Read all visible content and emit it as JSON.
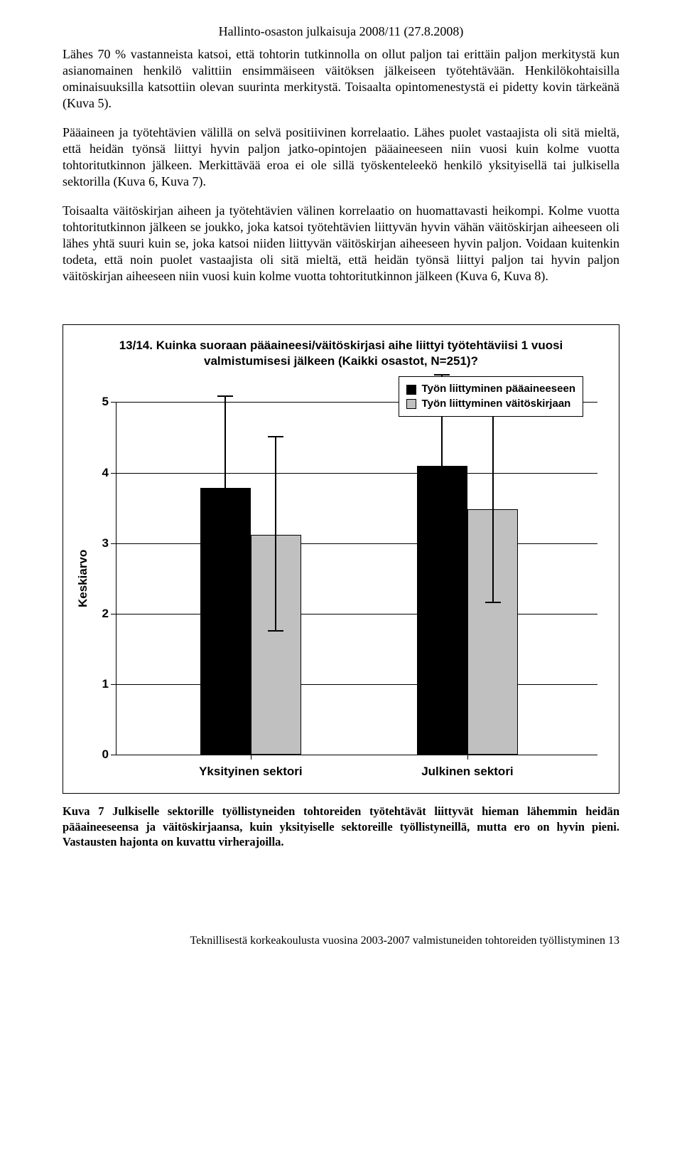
{
  "header": "Hallinto-osaston julkaisuja 2008/11 (27.8.2008)",
  "paragraphs": {
    "p1": "Lähes 70 % vastanneista katsoi, että tohtorin tutkinnolla on ollut paljon tai erittäin paljon merkitystä kun asianomainen henkilö valittiin ensimmäiseen väitöksen jälkeiseen työtehtävään. Henkilökohtaisilla ominaisuuksilla katsottiin olevan suurinta merkitystä. Toisaalta opintomenestystä ei pidetty kovin tärkeänä (Kuva 5).",
    "p2": "Pääaineen ja työtehtävien välillä on selvä positiivinen korrelaatio. Lähes puolet vastaajista oli sitä mieltä, että heidän työnsä liittyi hyvin paljon jatko-opintojen pääaineeseen niin vuosi kuin kolme vuotta tohtoritutkinnon jälkeen. Merkittävää eroa ei ole sillä työskenteleekö henkilö yksityisellä tai julkisella sektorilla (Kuva 6, Kuva 7).",
    "p3": "Toisaalta väitöskirjan aiheen ja työtehtävien välinen korrelaatio on huomattavasti heikompi. Kolme vuotta tohtoritutkinnon jälkeen se joukko, joka katsoi työtehtävien liittyvän hyvin vähän väitöskirjan aiheeseen oli lähes yhtä suuri kuin se, joka katsoi niiden liittyvän väitöskirjan aiheeseen hyvin paljon. Voidaan kuitenkin todeta, että noin puolet vastaajista oli sitä mieltä, että heidän työnsä liittyi paljon tai hyvin paljon väitöskirjan aiheeseen niin vuosi kuin kolme vuotta tohtoritutkinnon jälkeen (Kuva 6, Kuva 8)."
  },
  "chart": {
    "type": "bar",
    "title": "13/14. Kuinka suoraan pääaineesi/väitöskirjasi aihe liittyi työtehtäviisi 1 vuosi valmistumisesi jälkeen (Kaikki osastot, N=251)?",
    "legend": [
      {
        "label": "Työn liittyminen pääaineeseen",
        "color": "#000000"
      },
      {
        "label": "Työn liittyminen väitöskirjaan",
        "color": "#c0c0c0"
      }
    ],
    "y_axis_title": "Keskiarvo",
    "y_min": 0,
    "y_max": 5,
    "y_ticks": [
      0,
      1,
      2,
      3,
      4,
      5
    ],
    "categories": [
      "Yksityinen sektori",
      "Julkinen sektori"
    ],
    "series": [
      {
        "name": "paaaine",
        "color": "#000000",
        "border": "#000000",
        "values": [
          3.78,
          4.1
        ],
        "err_low": [
          2.5,
          2.78
        ],
        "err_high": [
          5.1,
          5.4
        ]
      },
      {
        "name": "vaitos",
        "color": "#c0c0c0",
        "border": "#000000",
        "values": [
          3.12,
          3.48
        ],
        "err_low": [
          1.75,
          2.15
        ],
        "err_high": [
          4.52,
          4.85
        ]
      }
    ],
    "colors": {
      "background": "#ffffff",
      "grid": "#000000",
      "text": "#000000"
    },
    "bar_rel_width": 0.105,
    "group_positions": [
      0.28,
      0.73
    ],
    "err_cap_width": 22
  },
  "caption": "Kuva 7 Julkiselle sektorille työllistyneiden tohtoreiden työtehtävät liittyvät hieman lähemmin heidän pääaineeseensa ja väitöskirjaansa, kuin yksityiselle sektoreille työllistyneillä, mutta ero on hyvin pieni. Vastausten hajonta on kuvattu virherajoilla.",
  "footer": "Teknillisestä korkeakoulusta vuosina 2003-2007 valmistuneiden tohtoreiden työllistyminen   13"
}
